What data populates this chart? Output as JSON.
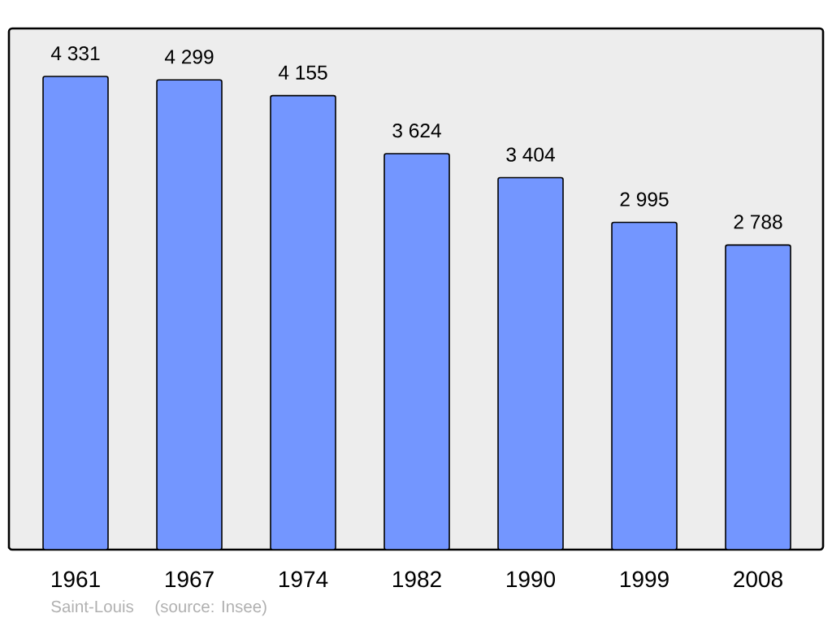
{
  "chart_data": {
    "type": "bar",
    "categories": [
      "1961",
      "1967",
      "1974",
      "1982",
      "1990",
      "1999",
      "2008"
    ],
    "values": [
      4331,
      4299,
      4155,
      3624,
      3404,
      2995,
      2788
    ],
    "value_labels": [
      "4 331",
      "4 299",
      "4 155",
      "3 624",
      "3 404",
      "2 995",
      "2 788"
    ],
    "color": "#7396ff",
    "annotations": [
      "Saint-Louis",
      "(source: Insee)"
    ]
  }
}
